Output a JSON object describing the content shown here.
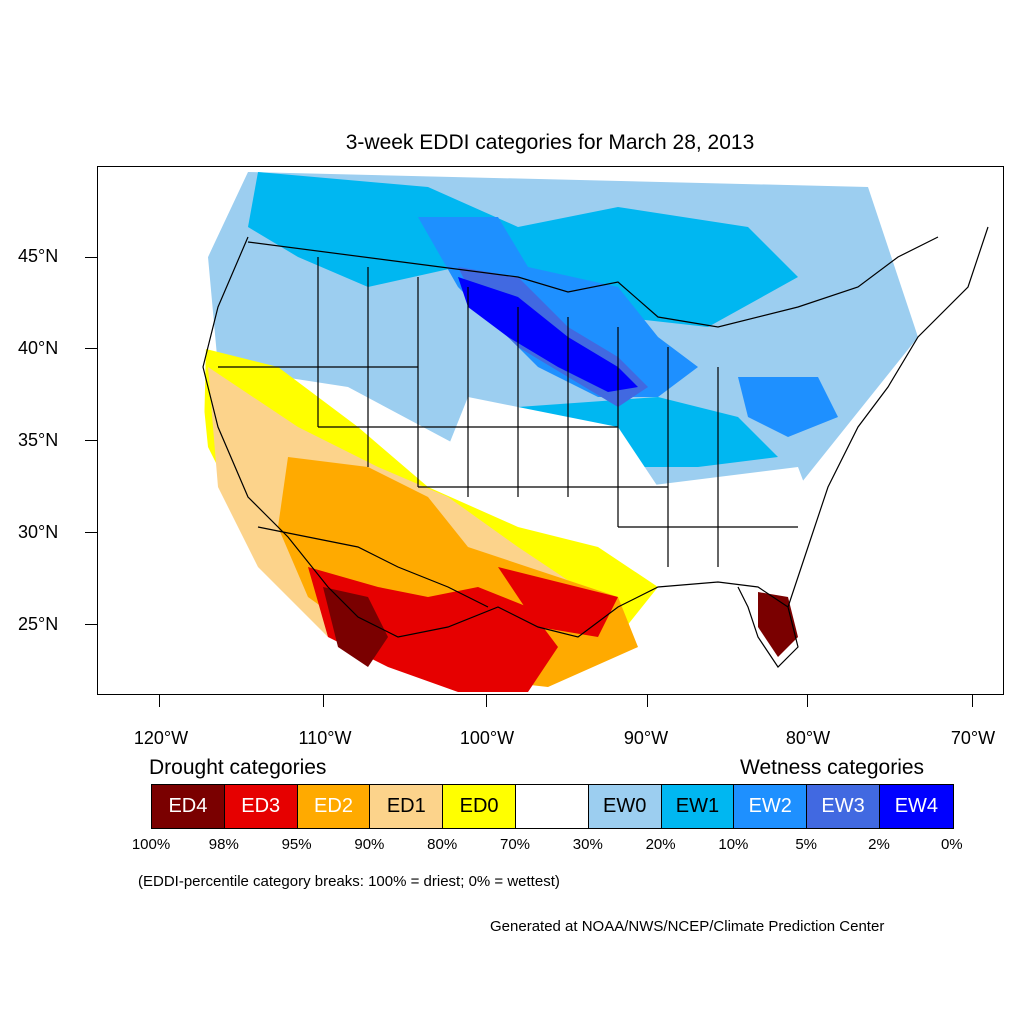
{
  "title": "3-week EDDI categories for March 28, 2013",
  "lat_labels": [
    "45°N",
    "40°N",
    "35°N",
    "30°N",
    "25°N"
  ],
  "lon_labels": [
    "120°W",
    "110°W",
    "100°W",
    "90°W",
    "80°W",
    "70°W"
  ],
  "legend": {
    "drought_heading": "Drought categories",
    "wetness_heading": "Wetness categories",
    "categories": [
      {
        "label": "ED4",
        "color": "#7a0000",
        "text_color": "#ffffff"
      },
      {
        "label": "ED3",
        "color": "#e60000",
        "text_color": "#ffffff"
      },
      {
        "label": "ED2",
        "color": "#ffaa00",
        "text_color": "#ffffff"
      },
      {
        "label": "ED1",
        "color": "#fcd38b",
        "text_color": "#000000"
      },
      {
        "label": "ED0",
        "color": "#ffff00",
        "text_color": "#000000"
      },
      {
        "label": "",
        "color": "#ffffff",
        "text_color": "#000000"
      },
      {
        "label": "EW0",
        "color": "#9ccef0",
        "text_color": "#000000"
      },
      {
        "label": "EW1",
        "color": "#00b7f1",
        "text_color": "#000000"
      },
      {
        "label": "EW2",
        "color": "#1e90ff",
        "text_color": "#ffffff"
      },
      {
        "label": "EW3",
        "color": "#4169e1",
        "text_color": "#ffffff"
      },
      {
        "label": "EW4",
        "color": "#0000ff",
        "text_color": "#ffffff"
      }
    ],
    "percent_breaks": [
      "100%",
      "98%",
      "95%",
      "90%",
      "80%",
      "70%",
      "30%",
      "20%",
      "10%",
      "5%",
      "2%",
      "0%"
    ]
  },
  "note": "(EDDI-percentile category breaks: 100% = driest; 0% = wettest)",
  "credit": "Generated at NOAA/NWS/NCEP/Climate Prediction Center"
}
